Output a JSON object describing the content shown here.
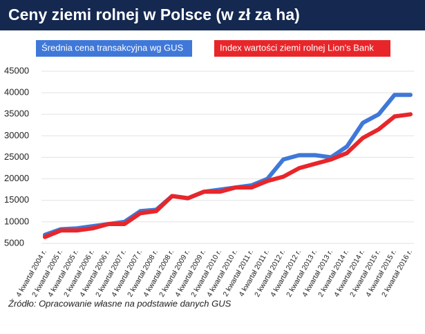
{
  "chart_data": {
    "type": "line",
    "title": "Ceny ziemi rolnej w Polsce (w zł za ha)",
    "source": "Źródło: Opracowanie własne na podstawie danych GUS",
    "categories": [
      "4 kwartał 2004 r.",
      "2 kwartał 2005 r.",
      "4 kwartał 2005 r.",
      "2 kwartał 2006 r.",
      "4 kwartał 2006 r.",
      "2 kwartał 2007 r.",
      "4 kwartał 2007 r.",
      "2 kwartał 2008 r.",
      "4 kwartał 2008 r.",
      "2 kwartał 2009 r.",
      "4 kwartał 2009 r.",
      "2 kwartał 2010 r.",
      "4 kwartał 2010 r.",
      "2 kwartał 2011 r.",
      "4 kwartał 2011 r.",
      "2 kwartał 2012 r.",
      "4 kwartał 2012 r.",
      "2 kwartał 2013 r.",
      "4 kwartał 2013 r.",
      "2 kwartał 2014 r.",
      "4 kwartał 2014 r.",
      "2 kwartał 2015 r.",
      "4 kwartał 2015 r.",
      "2 kwartał 2016 r."
    ],
    "series": [
      {
        "name": "Średnia cena transakcyjna wg GUS",
        "color": "#3f78d8",
        "values": [
          7000,
          8300,
          8500,
          9000,
          9500,
          10000,
          12500,
          12800,
          16000,
          15500,
          17000,
          17500,
          18000,
          18500,
          20000,
          24500,
          25500,
          25500,
          25000,
          27500,
          33000,
          35000,
          39500,
          39500
        ]
      },
      {
        "name": "Index wartości ziemi rolnej Lion's Bank",
        "color": "#e8262a",
        "values": [
          6500,
          8000,
          8000,
          8500,
          9500,
          9500,
          12000,
          12500,
          16000,
          15500,
          17000,
          17000,
          18000,
          18000,
          19500,
          20500,
          22500,
          23500,
          24500,
          26000,
          29500,
          31500,
          34500,
          35000
        ]
      }
    ],
    "ylim": [
      5000,
      45000
    ],
    "yticks": [
      5000,
      10000,
      15000,
      20000,
      25000,
      30000,
      35000,
      40000,
      45000
    ],
    "grid": true
  }
}
